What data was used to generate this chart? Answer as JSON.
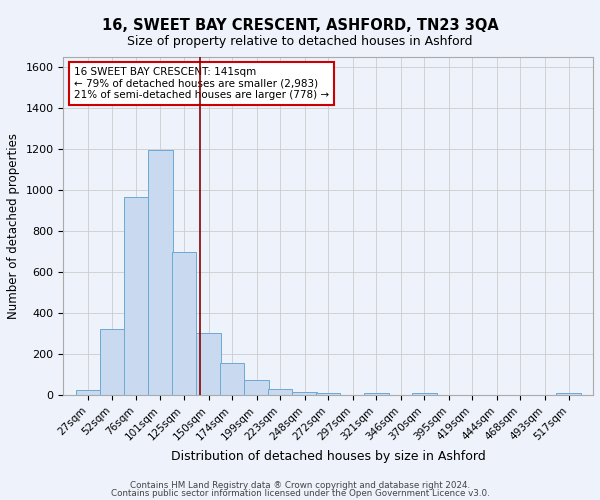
{
  "title": "16, SWEET BAY CRESCENT, ASHFORD, TN23 3QA",
  "subtitle": "Size of property relative to detached houses in Ashford",
  "xlabel": "Distribution of detached houses by size in Ashford",
  "ylabel": "Number of detached properties",
  "footnote1": "Contains HM Land Registry data ® Crown copyright and database right 2024.",
  "footnote2": "Contains public sector information licensed under the Open Government Licence v3.0.",
  "bar_labels": [
    "27sqm",
    "52sqm",
    "76sqm",
    "101sqm",
    "125sqm",
    "150sqm",
    "174sqm",
    "199sqm",
    "223sqm",
    "248sqm",
    "272sqm",
    "297sqm",
    "321sqm",
    "346sqm",
    "370sqm",
    "395sqm",
    "419sqm",
    "444sqm",
    "468sqm",
    "493sqm",
    "517sqm"
  ],
  "bar_values": [
    25,
    325,
    965,
    1195,
    700,
    305,
    155,
    75,
    30,
    15,
    10,
    0,
    10,
    0,
    12,
    0,
    0,
    0,
    0,
    0,
    12
  ],
  "bar_color": "#c8d9f0",
  "bar_edge_color": "#6aaad4",
  "annotation_line_color": "#8b0000",
  "annotation_box_text": "16 SWEET BAY CRESCENT: 141sqm\n← 79% of detached houses are smaller (2,983)\n21% of semi-detached houses are larger (778) →",
  "annotation_box_edgecolor": "#cc0000",
  "ylim": [
    0,
    1650
  ],
  "yticks": [
    0,
    200,
    400,
    600,
    800,
    1000,
    1200,
    1400,
    1600
  ],
  "grid_color": "#cccccc",
  "background_color": "#edf2fb",
  "bin_width": 25
}
